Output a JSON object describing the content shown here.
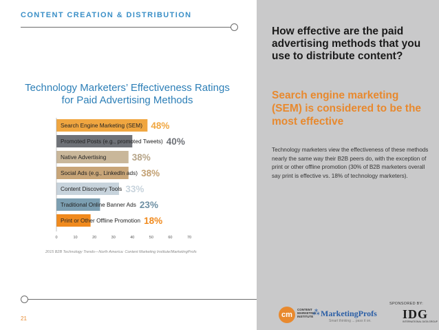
{
  "header": {
    "section_title": "CONTENT CREATION & DISTRIBUTION",
    "page_number": "21"
  },
  "chart_data": {
    "type": "bar",
    "orientation": "horizontal",
    "title": "Technology Marketers’ Effectiveness Ratings for Paid Advertising Methods",
    "categories": [
      "Search Engine Marketing (SEM)",
      "Promoted Posts (e.g., promoted Tweets)",
      "Native Advertising",
      "Social Ads (e.g., LinkedIn ads)",
      "Content Discovery Tools",
      "Traditional Online Banner Ads",
      "Print or Other Offline Promotion"
    ],
    "values": [
      48,
      40,
      38,
      38,
      33,
      23,
      18
    ],
    "value_labels": [
      "48%",
      "40%",
      "38%",
      "38%",
      "33%",
      "23%",
      "18%"
    ],
    "colors": [
      "#f0a640",
      "#6e7177",
      "#c9b79a",
      "#c8a578",
      "#c7d3dc",
      "#7c9fb2",
      "#f08a1e"
    ],
    "label_colors": [
      "#f0a640",
      "#6e7177",
      "#b5a386",
      "#c2a072",
      "#c7d3dc",
      "#6d8fa3",
      "#f08a1e"
    ],
    "x_ticks": [
      "0",
      "10",
      "20",
      "30",
      "40",
      "50",
      "60",
      "70"
    ],
    "xlim": [
      0,
      70
    ],
    "grid": false,
    "source": "2015 B2B Technology Trends—North America: Content Marketing Institute/MarketingProfs"
  },
  "sidebar": {
    "question": "How effective are the paid advertising methods that you use to distribute content?",
    "answer": "Search engine marketing (SEM) is considered to be the most effective",
    "body": "Technology marketers view the effectiveness of these methods nearly the same way their B2B peers do, with the exception of print or other offline promotion (30% of B2B marketers overall say print is effective vs. 18% of technology marketers).",
    "sponsored_label": "SPONSORED BY:",
    "logos": {
      "cmi_mark": "cm",
      "cmi_text": "CONTENT MARKETING INSTITUTE",
      "mp_name": "MarketingProfs",
      "mp_tagline": "Smart thinking ... pass it on.",
      "idg_name": "IDG",
      "idg_tagline": "INTERNATIONAL DATA GROUP"
    }
  }
}
